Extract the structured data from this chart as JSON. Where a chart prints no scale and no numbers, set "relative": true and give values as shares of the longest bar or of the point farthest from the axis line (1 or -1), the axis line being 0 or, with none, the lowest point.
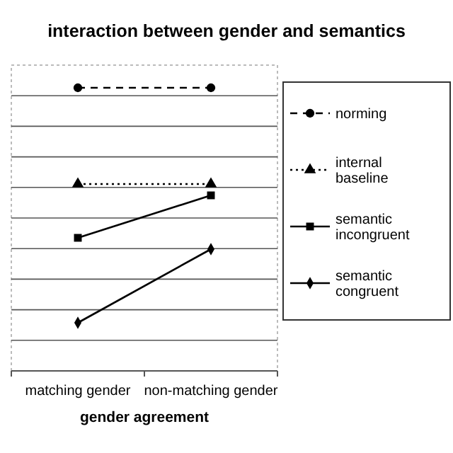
{
  "chart_data": {
    "type": "line",
    "title": "interaction between gender and semantics",
    "xlabel": "gender agreement",
    "categories": [
      "matching gender",
      "non-matching gender"
    ],
    "relative": true,
    "grid": "y",
    "legend": "right",
    "series": [
      {
        "name": "norming",
        "color": "#000000",
        "values": [
          1,
          1
        ],
        "marker": "circle",
        "line_style": "dashed"
      },
      {
        "name": "internal baseline",
        "color": "#000000",
        "values": [
          0.66,
          0.66
        ],
        "marker": "triangle",
        "line_style": "dotted"
      },
      {
        "name": "semantic incongruent",
        "color": "#000000",
        "values": [
          0.47,
          0.62
        ],
        "marker": "square",
        "line_style": "solid"
      },
      {
        "name": "semantic congruent",
        "color": "#000000",
        "values": [
          0.17,
          0.43
        ],
        "marker": "diamond",
        "line_style": "solid"
      }
    ]
  }
}
